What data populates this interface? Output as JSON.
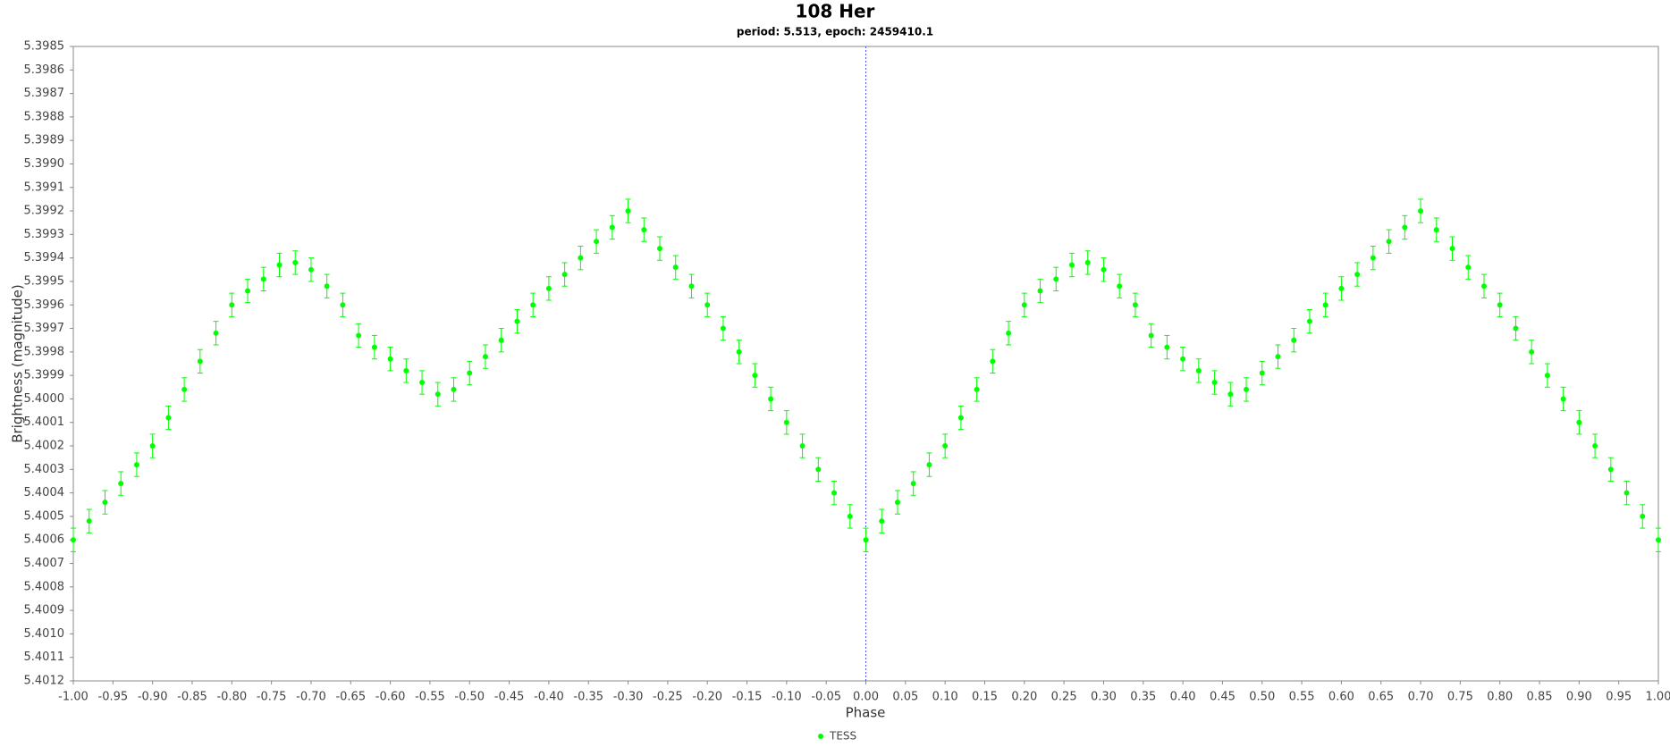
{
  "chart_data": {
    "type": "scatter",
    "title": "108 Her",
    "subtitle": "period: 5.513, epoch: 2459410.1",
    "x_label": "Phase",
    "y_label": "Brightness (magnitude)",
    "x": [
      -1.0,
      -0.98,
      -0.96,
      -0.94,
      -0.92,
      -0.9,
      -0.88,
      -0.86,
      -0.84,
      -0.82,
      -0.8,
      -0.78,
      -0.76,
      -0.74,
      -0.72,
      -0.7,
      -0.68,
      -0.66,
      -0.64,
      -0.62,
      -0.6,
      -0.58,
      -0.56,
      -0.54,
      -0.52,
      -0.5,
      -0.48,
      -0.46,
      -0.44,
      -0.42,
      -0.4,
      -0.38,
      -0.36,
      -0.34,
      -0.32,
      -0.3,
      -0.28,
      -0.26,
      -0.24,
      -0.22,
      -0.2,
      -0.18,
      -0.16,
      -0.14,
      -0.12,
      -0.1,
      -0.08,
      -0.06,
      -0.04,
      -0.02,
      0.0,
      0.02,
      0.04,
      0.06,
      0.08,
      0.1,
      0.12,
      0.14,
      0.16,
      0.18,
      0.2,
      0.22,
      0.24,
      0.26,
      0.28,
      0.3,
      0.32,
      0.34,
      0.36,
      0.38,
      0.4,
      0.42,
      0.44,
      0.46,
      0.48,
      0.5,
      0.52,
      0.54,
      0.56,
      0.58,
      0.6,
      0.62,
      0.64,
      0.66,
      0.68,
      0.7,
      0.72,
      0.74,
      0.76,
      0.78,
      0.8,
      0.82,
      0.84,
      0.86,
      0.88,
      0.9,
      0.92,
      0.94,
      0.96,
      0.98,
      1.0
    ],
    "series": [
      {
        "name": "TESS",
        "color": "#00ff00",
        "error": 5e-05,
        "values": [
          5.4006,
          5.40052,
          5.40044,
          5.40036,
          5.40028,
          5.4002,
          5.40008,
          5.39996,
          5.39984,
          5.39972,
          5.3996,
          5.39954,
          5.39949,
          5.39943,
          5.39942,
          5.39945,
          5.39952,
          5.3996,
          5.39973,
          5.39978,
          5.39983,
          5.39988,
          5.39993,
          5.39998,
          5.39996,
          5.39989,
          5.39982,
          5.39975,
          5.39967,
          5.3996,
          5.39953,
          5.39947,
          5.3994,
          5.39933,
          5.39927,
          5.3992,
          5.39928,
          5.39936,
          5.39944,
          5.39952,
          5.3996,
          5.3997,
          5.3998,
          5.3999,
          5.4,
          5.4001,
          5.4002,
          5.4003,
          5.4004,
          5.4005,
          5.4006,
          5.40052,
          5.40044,
          5.40036,
          5.40028,
          5.4002,
          5.40008,
          5.39996,
          5.39984,
          5.39972,
          5.3996,
          5.39954,
          5.39949,
          5.39943,
          5.39942,
          5.39945,
          5.39952,
          5.3996,
          5.39973,
          5.39978,
          5.39983,
          5.39988,
          5.39993,
          5.39998,
          5.39996,
          5.39989,
          5.39982,
          5.39975,
          5.39967,
          5.3996,
          5.39953,
          5.39947,
          5.3994,
          5.39933,
          5.39927,
          5.3992,
          5.39928,
          5.39936,
          5.39944,
          5.39952,
          5.3996,
          5.3997,
          5.3998,
          5.3999,
          5.4,
          5.4001,
          5.4002,
          5.4003,
          5.4004,
          5.4005,
          5.4006
        ]
      }
    ],
    "xlim": [
      -1.0,
      1.0
    ],
    "ylim": [
      5.4012,
      5.3985
    ],
    "xticks": [
      {
        "value": -1.0,
        "label": "-1.00"
      },
      -0.95,
      {
        "value": -0.9,
        "label": "-0.90"
      },
      -0.85,
      {
        "value": -0.8,
        "label": "-0.80"
      },
      -0.75,
      {
        "value": -0.7,
        "label": "-0.70"
      },
      -0.65,
      {
        "value": -0.6,
        "label": "-0.60"
      },
      -0.55,
      {
        "value": -0.5,
        "label": "-0.50"
      },
      -0.45,
      {
        "value": -0.4,
        "label": "-0.40"
      },
      -0.35,
      {
        "value": -0.3,
        "label": "-0.30"
      },
      -0.25,
      {
        "value": -0.2,
        "label": "-0.20"
      },
      -0.15,
      {
        "value": -0.1,
        "label": "-0.10"
      },
      -0.05,
      {
        "value": 0.0,
        "label": "0.00"
      },
      0.05,
      {
        "value": 0.1,
        "label": "0.10"
      },
      0.15,
      {
        "value": 0.2,
        "label": "0.20"
      },
      0.25,
      {
        "value": 0.3,
        "label": "0.30"
      },
      0.35,
      {
        "value": 0.4,
        "label": "0.40"
      },
      0.45,
      {
        "value": 0.5,
        "label": "0.50"
      },
      0.55,
      {
        "value": 0.6,
        "label": "0.60"
      },
      0.65,
      {
        "value": 0.7,
        "label": "0.70"
      },
      0.75,
      {
        "value": 0.8,
        "label": "0.80"
      },
      0.85,
      {
        "value": 0.9,
        "label": "0.90"
      },
      0.95,
      {
        "value": 1.0,
        "label": "1.00"
      }
    ],
    "yticks": [
      5.3985,
      5.3986,
      5.3987,
      5.3988,
      5.3989,
      {
        "value": 5.399,
        "label": "5.3990"
      },
      5.3991,
      5.3992,
      5.3993,
      5.3994,
      5.3995,
      5.3996,
      5.3997,
      5.3998,
      5.3999,
      {
        "value": 5.4,
        "label": "5.4000"
      },
      5.4001,
      5.4002,
      5.4003,
      5.4004,
      5.4005,
      5.4006,
      5.4007,
      5.4008,
      5.4009,
      {
        "value": 5.401,
        "label": "5.4010"
      },
      5.4011,
      5.4012
    ],
    "vline": 0.0,
    "vline_color": "#5050ff",
    "grid": false,
    "legend": "bottom"
  }
}
